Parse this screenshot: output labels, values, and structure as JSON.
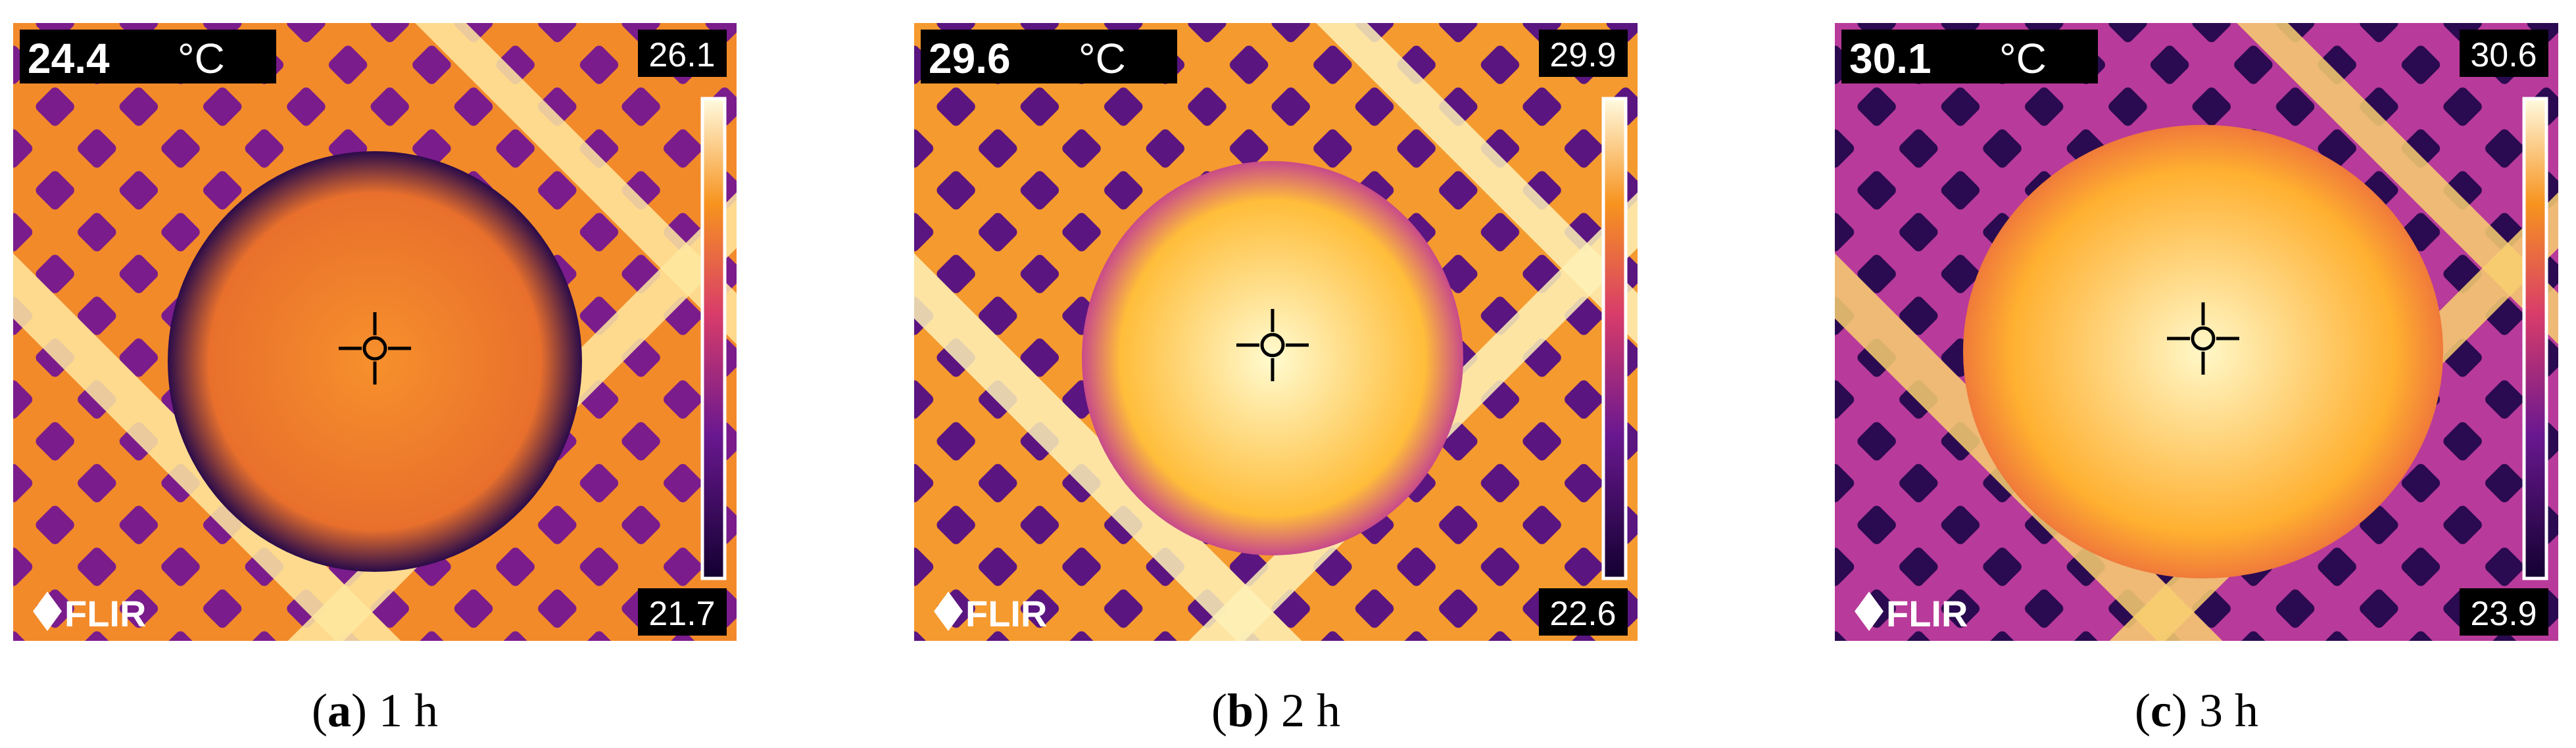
{
  "panels": [
    {
      "spot": "24.4",
      "unit": "°C",
      "max": "26.1",
      "min": "21.7",
      "logo": "FLIR",
      "caption": {
        "prefix": "(",
        "letter": "a",
        "suffix": ") 1 h"
      }
    },
    {
      "spot": "29.6",
      "unit": "°C",
      "max": "29.9",
      "min": "22.6",
      "logo": "FLIR",
      "caption": {
        "prefix": "(",
        "letter": "b",
        "suffix": ") 2 h"
      }
    },
    {
      "spot": "30.1",
      "unit": "°C",
      "max": "30.6",
      "min": "23.9",
      "logo": "FLIR",
      "caption": {
        "prefix": "(",
        "letter": "c",
        "suffix": ") 3 h"
      }
    }
  ]
}
